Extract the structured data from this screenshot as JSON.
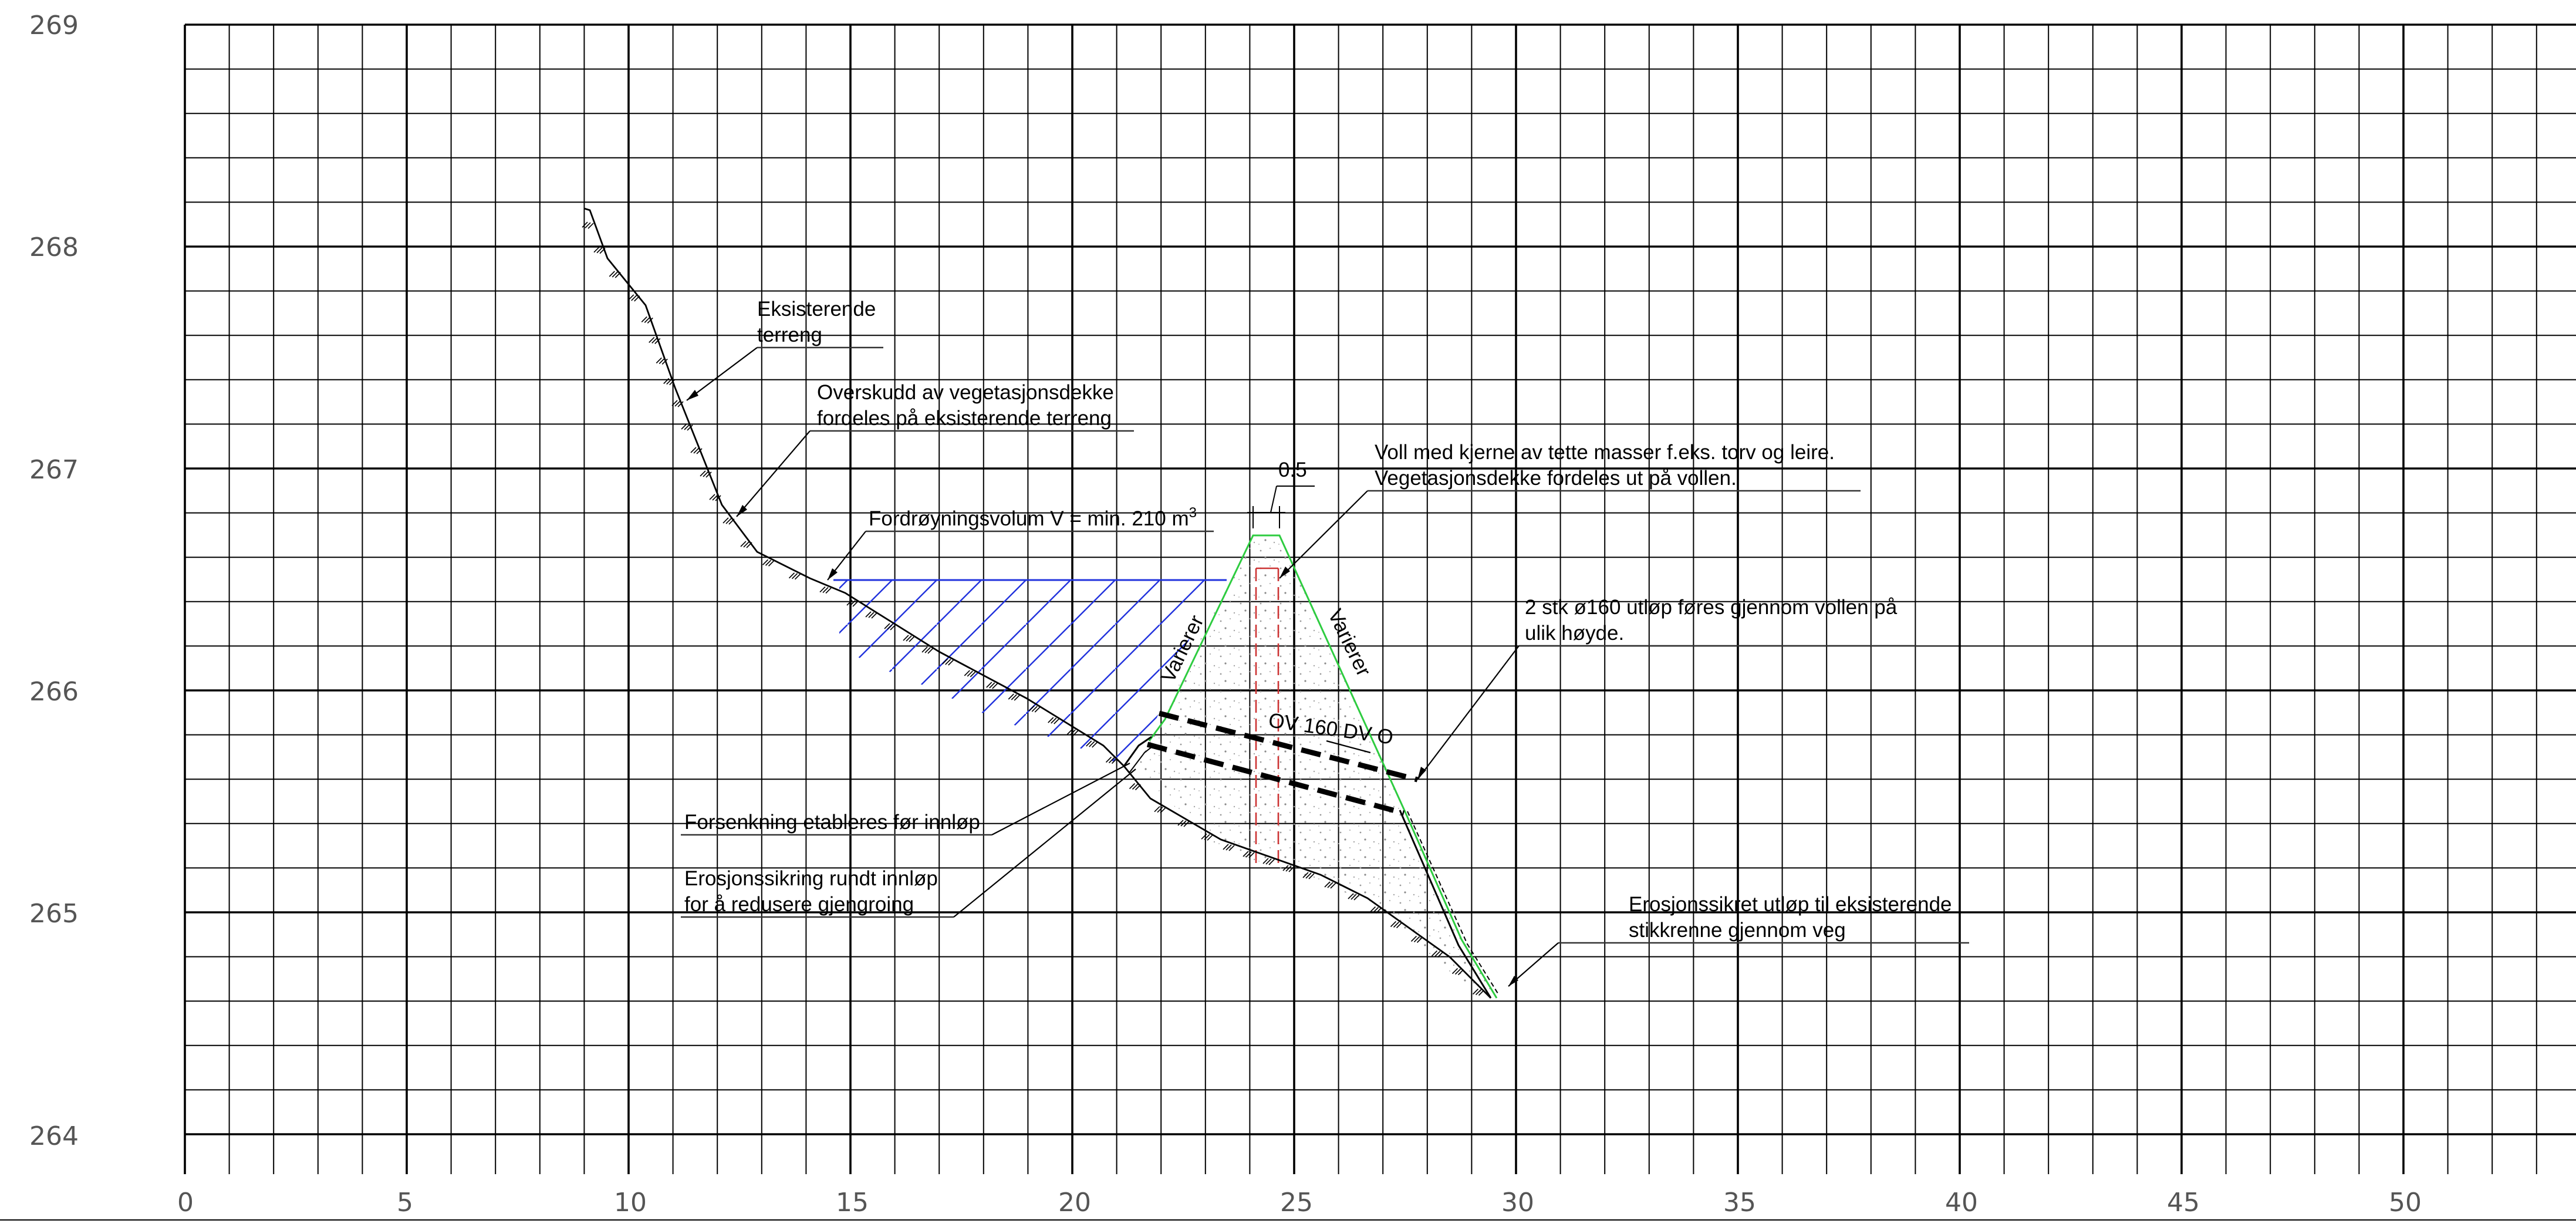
{
  "colors": {
    "grid": "#000000",
    "terrain": "#000000",
    "embankment_outline": "#2ecc40",
    "core": "#cc3333",
    "hatch_water": "#2233dd",
    "pipe": "#000000",
    "axis_text": "#555555"
  },
  "axes": {
    "y_ticks": [
      "269",
      "268",
      "267",
      "266",
      "265",
      "264"
    ],
    "x_ticks": [
      "0",
      "5",
      "10",
      "15",
      "20",
      "25",
      "30",
      "35",
      "40",
      "45",
      "50"
    ],
    "x_range": [
      0,
      53.5
    ],
    "y_range": [
      263.8,
      269
    ]
  },
  "dimension": {
    "crest_width": "0.5"
  },
  "annotations": {
    "existing_terrain": {
      "line1": "Eksisterende",
      "line2": "terreng"
    },
    "surplus_vegetation": {
      "line1": "Overskudd av vegetasjonsdekke",
      "line2": "fordeles på eksisterende terreng"
    },
    "retention_volume": {
      "text": "Fordrøyningsvolum V = min. 210 m",
      "sup": "3"
    },
    "embankment_core": {
      "line1": "Voll med kjerne av tette masser f.eks. torv og leire.",
      "line2": "Vegetasjonsdekke fordeles ut på vollen."
    },
    "outlet_pipes": {
      "line1": "2 stk ø160 utløp føres gjennom vollen på",
      "line2": "ulik høyde."
    },
    "varierer_left": "Varierer",
    "varierer_right": "Varierer",
    "pipe_label": "OV 160 DV   O",
    "depression": "Forsenkning etableres før innløp",
    "erosion_inlet": {
      "line1": "Erosjonssikring rundt innløp",
      "line2": "for å redusere gjengroing"
    },
    "erosion_outlet": {
      "line1": "Erosjonssikret utløp til eksisterende",
      "line2": "stikkrenne gjennom veg"
    }
  },
  "profile": {
    "terrain": [
      [
        9,
        268.2
      ],
      [
        10,
        267.7
      ],
      [
        11.2,
        267.15
      ],
      [
        12.2,
        266.8
      ],
      [
        13.1,
        266.55
      ],
      [
        14.5,
        266.45
      ],
      [
        16,
        266.25
      ],
      [
        18,
        266.05
      ],
      [
        20,
        265.8
      ],
      [
        21.3,
        265.65
      ],
      [
        23,
        265.45
      ],
      [
        25,
        265.3
      ],
      [
        27,
        265.1
      ],
      [
        28,
        264.97
      ],
      [
        29.2,
        264.65
      ]
    ],
    "embankment": [
      [
        21.3,
        265.65
      ],
      [
        21.7,
        265.8
      ],
      [
        24.1,
        266.7
      ],
      [
        24.7,
        266.7
      ],
      [
        27.2,
        265.45
      ],
      [
        29.4,
        264.62
      ]
    ],
    "water_level": 266.5,
    "water_x": [
      14.5,
      23.6
    ],
    "core_x": [
      24.15,
      24.75
    ],
    "core_y": [
      265.2,
      266.55
    ],
    "pipe_upper": [
      [
        21.8,
        265.9
      ],
      [
        27.9,
        265.6
      ]
    ],
    "pipe_lower": [
      [
        21.8,
        265.75
      ],
      [
        27.2,
        265.45
      ]
    ]
  }
}
